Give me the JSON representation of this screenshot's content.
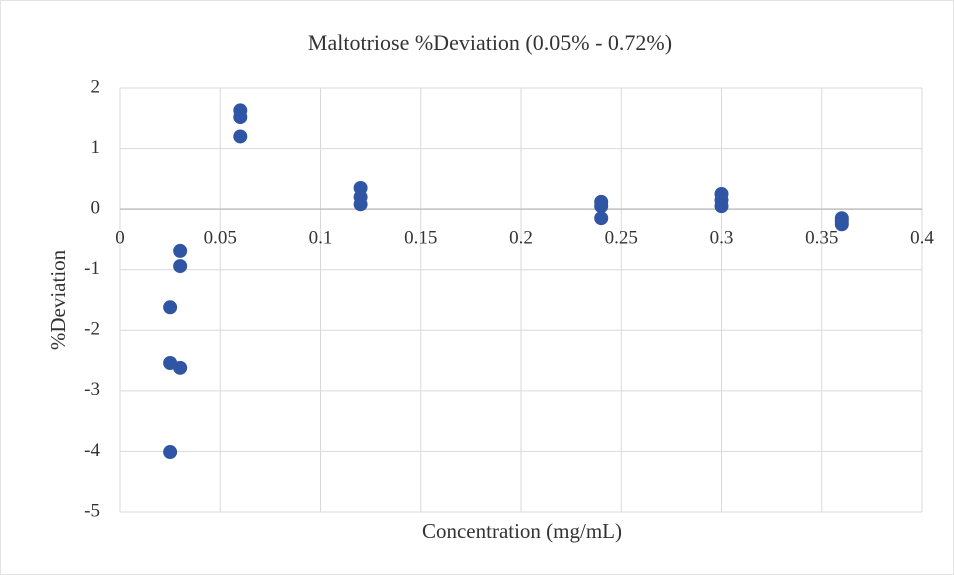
{
  "chart_data": {
    "type": "scatter",
    "title": "Maltotriose %Deviation (0.05% - 0.72%)",
    "x_label": "Concentration (mg/mL)",
    "y_label": "%Deviation",
    "x": [
      0.025,
      0.025,
      0.025,
      0.03,
      0.03,
      0.03,
      0.06,
      0.06,
      0.06,
      0.12,
      0.12,
      0.12,
      0.24,
      0.24,
      0.24,
      0.3,
      0.3,
      0.3,
      0.36,
      0.36,
      0.36
    ],
    "values": [
      -1.62,
      -2.54,
      -4.01,
      -0.69,
      -0.94,
      -2.62,
      1.63,
      1.52,
      1.2,
      0.35,
      0.2,
      0.08,
      0.12,
      0.05,
      -0.15,
      0.25,
      0.15,
      0.05,
      -0.15,
      -0.2,
      -0.25
    ],
    "color": "#2f55a4",
    "xlim": [
      0,
      0.4
    ],
    "xticks": [
      0,
      0.05,
      0.1,
      0.15,
      0.2,
      0.25,
      0.3,
      0.35,
      0.4
    ],
    "ylim": [
      -5,
      2
    ],
    "yticks": [
      2,
      1,
      0,
      -1,
      -2,
      -3,
      -4,
      -5
    ],
    "grid": true
  }
}
